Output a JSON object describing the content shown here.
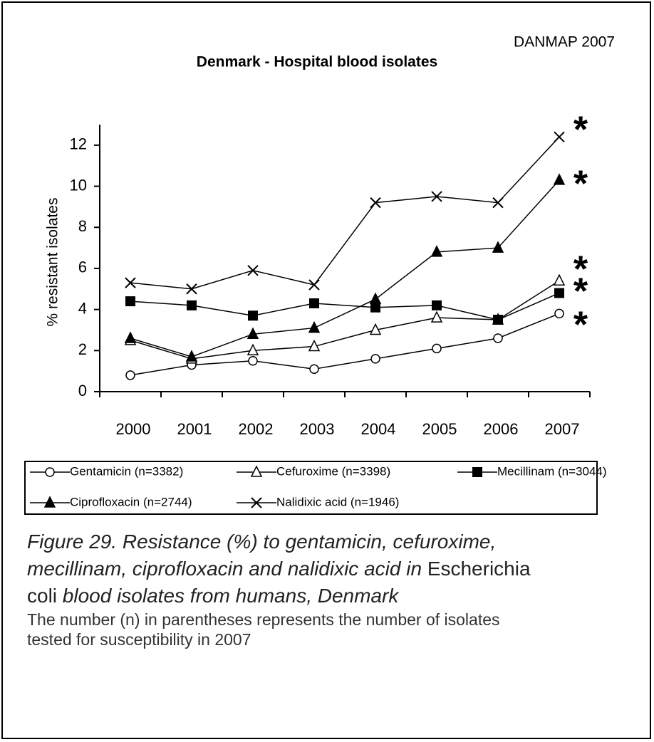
{
  "chart_data": {
    "type": "line",
    "source": "DANMAP 2007",
    "title": "Denmark - Hospital blood isolates",
    "y_label": "% resistant isolates",
    "categories": [
      "2000",
      "2001",
      "2002",
      "2003",
      "2004",
      "2005",
      "2006",
      "2007"
    ],
    "ylim": [
      0,
      13
    ],
    "yticks": [
      0,
      2,
      4,
      6,
      8,
      10,
      12
    ],
    "series": [
      {
        "name": "Gentamicin (n=3382)",
        "color": "#000000",
        "marker": "open-circle",
        "values": [
          0.8,
          1.3,
          1.5,
          1.1,
          1.6,
          2.1,
          2.6,
          3.8
        ]
      },
      {
        "name": "Cefuroxime (n=3398)",
        "color": "#000000",
        "marker": "open-triangle",
        "values": [
          2.5,
          1.6,
          2.0,
          2.2,
          3.0,
          3.6,
          3.5,
          5.4
        ]
      },
      {
        "name": "Mecillinam (n=3044)",
        "color": "#000000",
        "marker": "filled-square",
        "values": [
          4.4,
          4.2,
          3.7,
          4.3,
          4.1,
          4.2,
          3.5,
          4.8
        ]
      },
      {
        "name": "Ciprofloxacin (n=2744)",
        "color": "#000000",
        "marker": "filled-triangle",
        "values": [
          2.6,
          1.7,
          2.8,
          3.1,
          4.5,
          6.8,
          7.0,
          10.3
        ]
      },
      {
        "name": "Nalidixic acid (n=1946)",
        "color": "#000000",
        "marker": "cross",
        "values": [
          5.3,
          5.0,
          5.9,
          5.2,
          9.2,
          9.5,
          9.2,
          12.4
        ]
      }
    ],
    "annotations": [
      "*",
      "*",
      "*",
      "*",
      "*"
    ],
    "annotation_color": "#a0102a",
    "caption": [
      [
        "Figure 29. Resistance (%) to gentamicin, cefuroxime,"
      ],
      [
        "mecillinam, ciprofloxacin and nalidixic acid in",
        "Escherichia"
      ],
      [
        "coli",
        "blood isolates from humans, Denmark"
      ]
    ],
    "note": [
      "The number (n) in parentheses represents the number of isolates",
      "tested for susceptibility in 2007"
    ]
  }
}
